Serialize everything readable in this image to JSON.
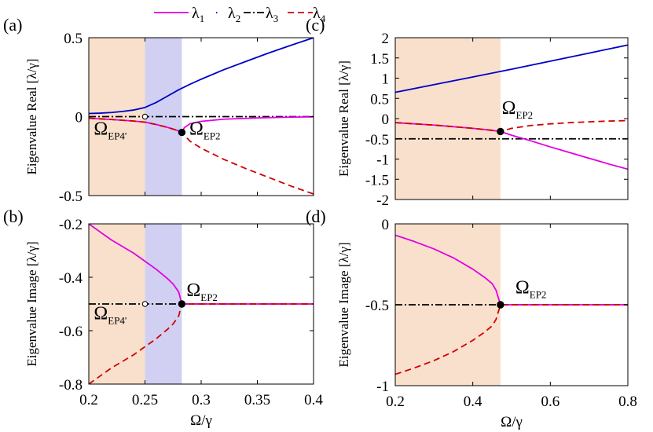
{
  "legend": {
    "entries": [
      {
        "label": "λ",
        "sub": "1",
        "color": "#e000e0",
        "style": "solid"
      },
      {
        "label": "λ",
        "sub": "2",
        "color": "#0000c8",
        "style": "dot"
      },
      {
        "label": "λ",
        "sub": "3",
        "color": "#000000",
        "style": "dashdot"
      },
      {
        "label": "λ",
        "sub": "4",
        "color": "#d00000",
        "style": "dashed"
      }
    ]
  },
  "colors": {
    "lambda1": "#e000e0",
    "lambda2": "#0000c8",
    "lambda3": "#000000",
    "lambda4": "#d00000",
    "region_orange": "#f8e0cc",
    "region_blue": "#d2d0f2"
  },
  "chart_data": [
    {
      "panel": "(a)",
      "type": "line",
      "ylabel": "Eigenvalue Real [λ/γ]",
      "xlabel": "",
      "xlim": [
        0.2,
        0.4
      ],
      "ylim": [
        -0.5,
        0.5
      ],
      "xticks": [
        0.2,
        0.25,
        0.3,
        0.35,
        0.4
      ],
      "yticks": [
        -0.5,
        0,
        0.5
      ],
      "ytick_labels": [
        "-0.5",
        "0",
        "0.5"
      ],
      "show_xtick_labels": false,
      "shaded": [
        {
          "from": 0.2,
          "to": 0.25,
          "color": "orange"
        },
        {
          "from": 0.25,
          "to": 0.2828,
          "color": "blue"
        }
      ],
      "series": [
        {
          "name": "blue",
          "color": "#0000c8",
          "style": "solid",
          "x": [
            0.2,
            0.21,
            0.22,
            0.23,
            0.24,
            0.25,
            0.26,
            0.27,
            0.28,
            0.29,
            0.3,
            0.32,
            0.34,
            0.36,
            0.38,
            0.4
          ],
          "y": [
            0.02,
            0.022,
            0.026,
            0.033,
            0.042,
            0.058,
            0.09,
            0.13,
            0.17,
            0.205,
            0.237,
            0.297,
            0.35,
            0.403,
            0.452,
            0.5
          ]
        },
        {
          "name": "black-dashdot",
          "color": "#000000",
          "style": "dashdot",
          "x": [
            0.2,
            0.4
          ],
          "y": [
            0,
            0
          ]
        },
        {
          "name": "magenta",
          "color": "#e000e0",
          "style": "solid",
          "x": [
            0.2,
            0.22,
            0.24,
            0.25,
            0.26,
            0.27,
            0.28,
            0.2828,
            0.285,
            0.29,
            0.3,
            0.32,
            0.35,
            0.38,
            0.4
          ],
          "y": [
            -0.01,
            -0.018,
            -0.028,
            -0.035,
            -0.05,
            -0.068,
            -0.09,
            -0.1,
            -0.07,
            -0.045,
            -0.03,
            -0.016,
            -0.008,
            -0.003,
            -0.002
          ]
        },
        {
          "name": "red-dashed",
          "color": "#d00000",
          "style": "dashed",
          "x": [
            0.2,
            0.22,
            0.24,
            0.25,
            0.26,
            0.27,
            0.28,
            0.2828,
            0.29,
            0.3,
            0.32,
            0.34,
            0.36,
            0.38,
            0.4
          ],
          "y": [
            -0.01,
            -0.018,
            -0.028,
            -0.035,
            -0.05,
            -0.068,
            -0.09,
            -0.1,
            -0.155,
            -0.2,
            -0.27,
            -0.33,
            -0.385,
            -0.44,
            -0.49
          ]
        }
      ],
      "markers": [
        {
          "x": 0.25,
          "y": 0,
          "fill": "open"
        },
        {
          "x": 0.2828,
          "y": -0.1,
          "fill": "filled"
        }
      ],
      "annotations": [
        {
          "text": "Ω",
          "sub": "EP4'",
          "at": [
            0.2045,
            -0.115
          ]
        },
        {
          "text": "Ω",
          "sub": "EP2",
          "at": [
            0.2895,
            -0.115
          ]
        }
      ]
    },
    {
      "panel": "(b)",
      "type": "line",
      "ylabel": "Eigenvalue Image [λ/γ]",
      "xlabel": "Ω/γ",
      "xlim": [
        0.2,
        0.4
      ],
      "ylim": [
        -0.8,
        -0.2
      ],
      "xticks": [
        0.2,
        0.25,
        0.3,
        0.35,
        0.4
      ],
      "xtick_labels": [
        "0.2",
        "0.25",
        "0.3",
        "0.35",
        "0.4"
      ],
      "yticks": [
        -0.8,
        -0.6,
        -0.4,
        -0.2
      ],
      "ytick_labels": [
        "-0.8",
        "-0.6",
        "-0.4",
        "-0.2"
      ],
      "show_xtick_labels": true,
      "shaded": [
        {
          "from": 0.2,
          "to": 0.25,
          "color": "orange"
        },
        {
          "from": 0.25,
          "to": 0.2828,
          "color": "blue"
        }
      ],
      "series": [
        {
          "name": "black-dashdot",
          "color": "#000000",
          "style": "dashdot",
          "x": [
            0.2,
            0.4
          ],
          "y": [
            -0.5,
            -0.5
          ]
        },
        {
          "name": "magenta",
          "color": "#e000e0",
          "style": "solid",
          "x": [
            0.2,
            0.21,
            0.22,
            0.23,
            0.24,
            0.25,
            0.26,
            0.27,
            0.275,
            0.28,
            0.2828,
            0.29,
            0.3,
            0.35,
            0.4
          ],
          "y": [
            -0.2,
            -0.23,
            -0.26,
            -0.285,
            -0.31,
            -0.34,
            -0.37,
            -0.405,
            -0.425,
            -0.455,
            -0.5,
            -0.5,
            -0.5,
            -0.5,
            -0.5
          ]
        },
        {
          "name": "red-dashed",
          "color": "#d00000",
          "style": "dashed",
          "x": [
            0.2,
            0.21,
            0.22,
            0.23,
            0.24,
            0.25,
            0.26,
            0.27,
            0.275,
            0.28,
            0.2828,
            0.29,
            0.3,
            0.35,
            0.4
          ],
          "y": [
            -0.8,
            -0.77,
            -0.74,
            -0.715,
            -0.69,
            -0.66,
            -0.63,
            -0.595,
            -0.575,
            -0.545,
            -0.5,
            -0.5,
            -0.5,
            -0.5,
            -0.5
          ]
        }
      ],
      "markers": [
        {
          "x": 0.25,
          "y": -0.5,
          "fill": "open"
        },
        {
          "x": 0.2828,
          "y": -0.5,
          "fill": "filled"
        }
      ],
      "annotations": [
        {
          "text": "Ω",
          "sub": "EP4'",
          "at": [
            0.2045,
            -0.557
          ]
        },
        {
          "text": "Ω",
          "sub": "EP2",
          "at": [
            0.287,
            -0.47
          ]
        }
      ]
    },
    {
      "panel": "(c)",
      "type": "line",
      "ylabel": "Eigenvalue Real [λ/γ]",
      "xlabel": "",
      "xlim": [
        0.2,
        0.8
      ],
      "ylim": [
        -2,
        2
      ],
      "xticks": [
        0.2,
        0.4,
        0.6,
        0.8
      ],
      "yticks": [
        -2,
        -1.5,
        -1,
        -0.5,
        0,
        0.5,
        1,
        1.5,
        2
      ],
      "ytick_labels": [
        "-2",
        "-1.5",
        "-1",
        "-0.5",
        "0",
        "0.5",
        "1",
        "1.5",
        "2"
      ],
      "show_xtick_labels": false,
      "shaded": [
        {
          "from": 0.2,
          "to": 0.4714,
          "color": "orange"
        }
      ],
      "series": [
        {
          "name": "blue",
          "color": "#0000c8",
          "style": "solid",
          "x": [
            0.2,
            0.3,
            0.4,
            0.5,
            0.6,
            0.7,
            0.8
          ],
          "y": [
            0.65,
            0.84,
            1.03,
            1.22,
            1.42,
            1.62,
            1.82
          ]
        },
        {
          "name": "black-dashdot",
          "color": "#000000",
          "style": "dashdot",
          "x": [
            0.2,
            0.8
          ],
          "y": [
            -0.5,
            -0.5
          ]
        },
        {
          "name": "magenta",
          "color": "#e000e0",
          "style": "solid",
          "x": [
            0.2,
            0.25,
            0.3,
            0.35,
            0.4,
            0.45,
            0.4714,
            0.5,
            0.55,
            0.6,
            0.65,
            0.7,
            0.75,
            0.8
          ],
          "y": [
            -0.1,
            -0.13,
            -0.16,
            -0.2,
            -0.24,
            -0.29,
            -0.32,
            -0.41,
            -0.55,
            -0.7,
            -0.84,
            -0.98,
            -1.12,
            -1.25
          ]
        },
        {
          "name": "red-dashed",
          "color": "#d00000",
          "style": "dashed",
          "x": [
            0.2,
            0.25,
            0.3,
            0.35,
            0.4,
            0.45,
            0.4714,
            0.5,
            0.55,
            0.6,
            0.65,
            0.7,
            0.75,
            0.8
          ],
          "y": [
            -0.1,
            -0.13,
            -0.16,
            -0.2,
            -0.24,
            -0.29,
            -0.32,
            -0.24,
            -0.17,
            -0.13,
            -0.1,
            -0.08,
            -0.06,
            -0.05
          ]
        }
      ],
      "markers": [
        {
          "x": 0.4714,
          "y": -0.32,
          "fill": "filled"
        }
      ],
      "annotations": [
        {
          "text": "Ω",
          "sub": "EP2",
          "at": [
            0.475,
            0.12
          ]
        }
      ]
    },
    {
      "panel": "(d)",
      "type": "line",
      "ylabel": "Eigenvalue Image [λ/γ]",
      "xlabel": "Ω/γ",
      "xlim": [
        0.2,
        0.8
      ],
      "ylim": [
        -1,
        0
      ],
      "xticks": [
        0.2,
        0.4,
        0.6,
        0.8
      ],
      "xtick_labels": [
        "0.2",
        "0.4",
        "0.6",
        "0.8"
      ],
      "yticks": [
        -1,
        -0.5,
        0
      ],
      "ytick_labels": [
        "-1",
        "-0.5",
        "0"
      ],
      "show_xtick_labels": true,
      "shaded": [
        {
          "from": 0.2,
          "to": 0.4714,
          "color": "orange"
        }
      ],
      "series": [
        {
          "name": "black-dashdot",
          "color": "#000000",
          "style": "dashdot",
          "x": [
            0.2,
            0.8
          ],
          "y": [
            -0.5,
            -0.5
          ]
        },
        {
          "name": "magenta",
          "color": "#e000e0",
          "style": "solid",
          "x": [
            0.2,
            0.25,
            0.3,
            0.35,
            0.4,
            0.43,
            0.45,
            0.46,
            0.4714,
            0.5,
            0.6,
            0.7,
            0.8
          ],
          "y": [
            -0.07,
            -0.11,
            -0.155,
            -0.21,
            -0.28,
            -0.33,
            -0.37,
            -0.41,
            -0.5,
            -0.5,
            -0.5,
            -0.5,
            -0.5
          ]
        },
        {
          "name": "red-dashed",
          "color": "#d00000",
          "style": "dashed",
          "x": [
            0.2,
            0.25,
            0.3,
            0.35,
            0.4,
            0.43,
            0.45,
            0.46,
            0.4714,
            0.5,
            0.6,
            0.7,
            0.8
          ],
          "y": [
            -0.93,
            -0.89,
            -0.845,
            -0.79,
            -0.72,
            -0.67,
            -0.63,
            -0.59,
            -0.5,
            -0.5,
            -0.5,
            -0.5,
            -0.5
          ]
        }
      ],
      "markers": [
        {
          "x": 0.4714,
          "y": -0.5,
          "fill": "filled"
        }
      ],
      "annotations": [
        {
          "text": "Ω",
          "sub": "EP2",
          "at": [
            0.51,
            -0.43
          ]
        }
      ]
    }
  ]
}
